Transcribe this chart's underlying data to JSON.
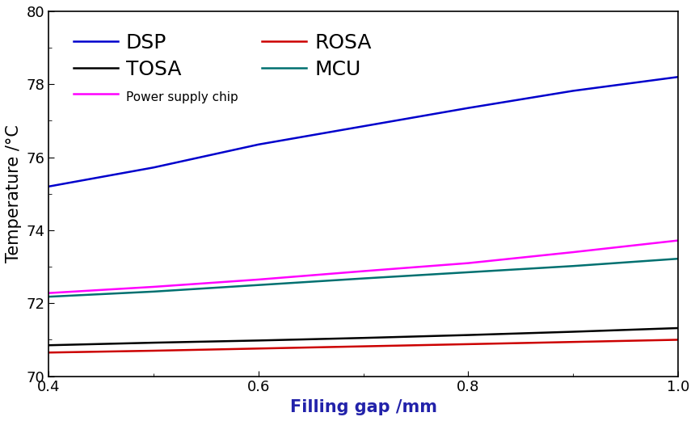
{
  "x": [
    0.4,
    0.5,
    0.6,
    0.7,
    0.8,
    0.9,
    1.0
  ],
  "DSP": [
    75.2,
    75.72,
    76.35,
    76.85,
    77.35,
    77.82,
    78.2
  ],
  "Power_supply_chip": [
    72.28,
    72.45,
    72.65,
    72.88,
    73.1,
    73.4,
    73.72
  ],
  "MCU": [
    72.18,
    72.32,
    72.5,
    72.68,
    72.85,
    73.02,
    73.22
  ],
  "TOSA": [
    70.85,
    70.92,
    70.98,
    71.05,
    71.13,
    71.22,
    71.32
  ],
  "ROSA": [
    70.65,
    70.7,
    70.76,
    70.82,
    70.88,
    70.94,
    71.0
  ],
  "colors": {
    "DSP": "#0000cc",
    "Power_supply_chip": "#ff00ff",
    "MCU": "#007070",
    "TOSA": "#000000",
    "ROSA": "#cc0000"
  },
  "labels": {
    "DSP": "DSP",
    "Power_supply_chip": "Power supply chip",
    "MCU": "MCU",
    "TOSA": "TOSA",
    "ROSA": "ROSA"
  },
  "xlabel": "Filling gap /mm",
  "ylabel": "Temperature /°C",
  "xlabel_color": "#2222aa",
  "xlim": [
    0.4,
    1.0
  ],
  "ylim": [
    70,
    80
  ],
  "yticks": [
    70,
    72,
    74,
    76,
    78,
    80
  ],
  "xticks": [
    0.4,
    0.6,
    0.8,
    1.0
  ],
  "axis_label_fontsize": 15,
  "tick_fontsize": 13,
  "legend_fontsize_large": 18,
  "legend_fontsize_small": 11,
  "line_width": 1.8,
  "background_color": "#ffffff"
}
